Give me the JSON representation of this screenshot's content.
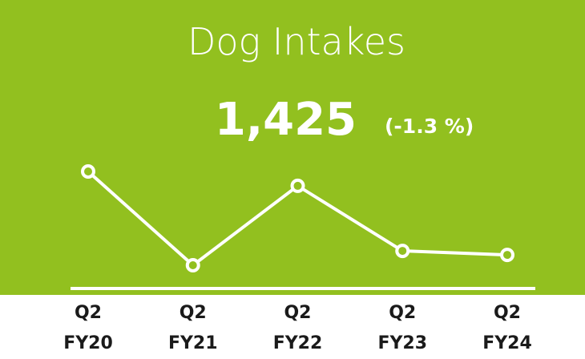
{
  "chart_data": {
    "type": "line",
    "title": "Dog Intakes",
    "kpi": {
      "value": 1425,
      "label": "1,425"
    },
    "change": {
      "value": -1.3,
      "label": "(-1.3 %)"
    },
    "categories": [
      "Q2 FY20",
      "Q2 FY21",
      "Q2 FY22",
      "Q2 FY23",
      "Q2 FY24"
    ],
    "values": [
      1820,
      1376,
      1752,
      1444,
      1425
    ],
    "color": "#ffffff",
    "background": "#92c01f"
  }
}
